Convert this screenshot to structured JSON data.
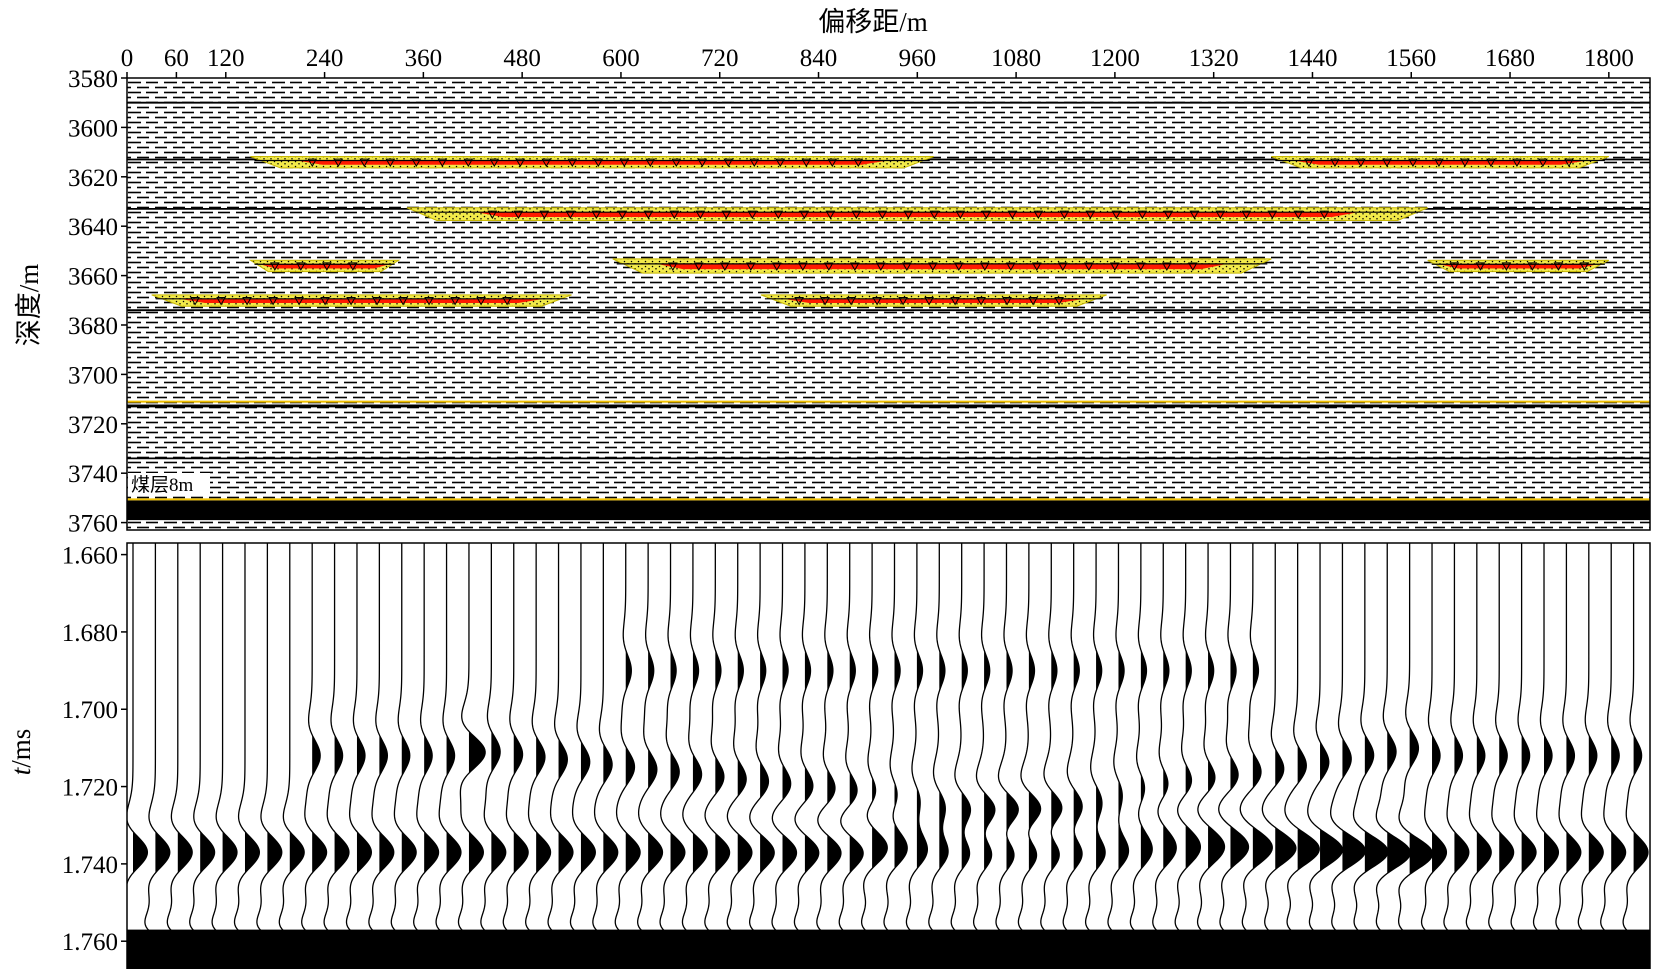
{
  "figure": {
    "top_title": "偏移距/m",
    "top_ylabel": "深度/m",
    "bottom_ylabel_italic": "t",
    "bottom_ylabel_rest": "/ms",
    "coal_label": "煤层8m"
  },
  "offset_axis": {
    "ticks": [
      0,
      60,
      120,
      240,
      360,
      480,
      600,
      720,
      840,
      960,
      1080,
      1200,
      1320,
      1440,
      1560,
      1680,
      1800
    ],
    "range": [
      0,
      1850
    ]
  },
  "depth_axis": {
    "ticks": [
      3580,
      3600,
      3620,
      3640,
      3660,
      3680,
      3700,
      3720,
      3740,
      3760
    ],
    "range": [
      3580,
      3763
    ]
  },
  "time_axis": {
    "ticks": [
      "1.660",
      "1.680",
      "1.700",
      "1.720",
      "1.740",
      "1.760"
    ],
    "range": [
      1.657,
      1.769
    ]
  },
  "model": {
    "coal_seam": {
      "thickness_m": 8,
      "top_depth": 3751,
      "bottom_depth": 3759
    },
    "thin_layers": [
      {
        "x0": 150,
        "x1": 980,
        "depth": 3614,
        "thick": 4
      },
      {
        "x0": 1390,
        "x1": 1800,
        "depth": 3614,
        "thick": 4
      },
      {
        "x0": 340,
        "x1": 1580,
        "depth": 3635,
        "thick": 4.5
      },
      {
        "x0": 150,
        "x1": 330,
        "depth": 3656,
        "thick": 4
      },
      {
        "x0": 590,
        "x1": 1390,
        "depth": 3656,
        "thick": 5
      },
      {
        "x0": 1580,
        "x1": 1800,
        "depth": 3656,
        "thick": 4
      },
      {
        "x0": 30,
        "x1": 540,
        "depth": 3670,
        "thick": 4
      },
      {
        "x0": 770,
        "x1": 1190,
        "depth": 3670,
        "thick": 4
      }
    ]
  },
  "colors": {
    "sandstone": "#f2ea4a",
    "fill_core": "#ff1a00",
    "yellow_line": "#f0c000",
    "black": "#000000"
  }
}
